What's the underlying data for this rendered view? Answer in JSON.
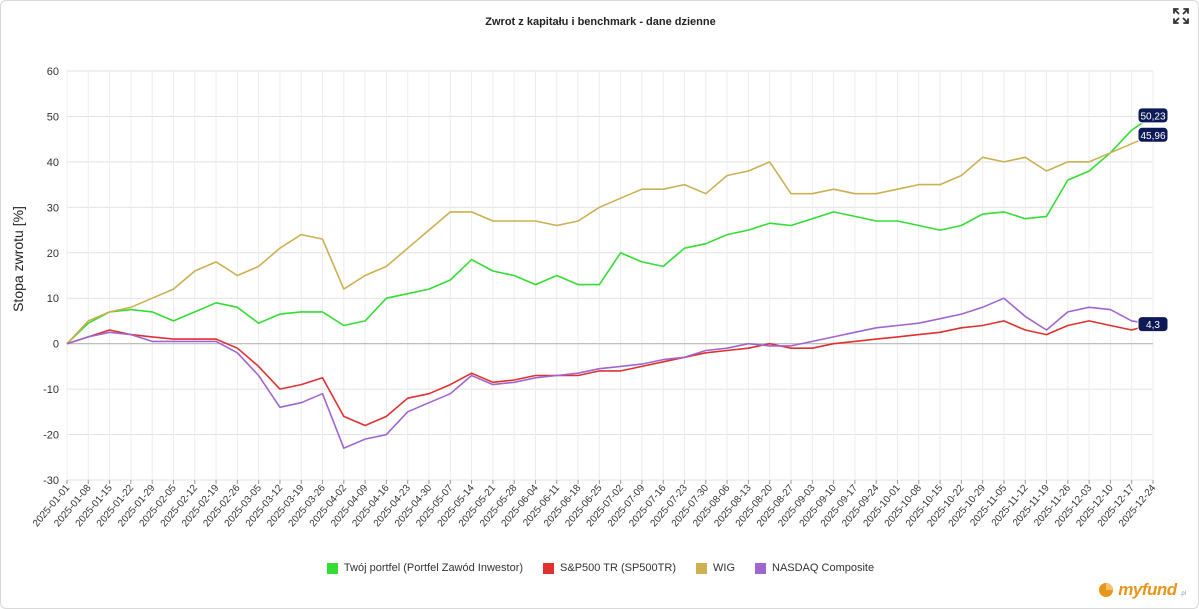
{
  "header": {
    "fullscreen_icon": "expand-arrows-icon"
  },
  "chart_data": {
    "type": "line",
    "title": "Zwrot z kapitału i benchmark - dane dzienne",
    "xlabel": "",
    "ylabel": "Stopa zwrotu [%]",
    "ylim": [
      -30,
      60
    ],
    "yticks": [
      60,
      50,
      40,
      30,
      20,
      10,
      0,
      -10,
      -20,
      -30
    ],
    "grid": true,
    "legend_position": "bottom",
    "x_tick_labels": [
      "2025-01-01",
      "2025-01-08",
      "2025-01-15",
      "2025-01-22",
      "2025-01-29",
      "2025-02-05",
      "2025-02-12",
      "2025-02-19",
      "2025-02-26",
      "2025-03-05",
      "2025-03-12",
      "2025-03-19",
      "2025-03-26",
      "2025-04-02",
      "2025-04-09",
      "2025-04-16",
      "2025-04-23",
      "2025-04-30",
      "2025-05-07",
      "2025-05-14",
      "2025-05-21",
      "2025-05-28",
      "2025-06-04",
      "2025-06-11",
      "2025-06-18",
      "2025-06-25",
      "2025-07-02",
      "2025-07-09",
      "2025-07-16",
      "2025-07-23",
      "2025-07-30",
      "2025-08-06",
      "2025-08-13",
      "2025-08-20",
      "2025-08-27",
      "2025-09-03",
      "2025-09-10",
      "2025-09-17",
      "2025-09-24",
      "2025-10-01",
      "2025-10-08",
      "2025-10-15",
      "2025-10-22",
      "2025-10-29",
      "2025-11-05",
      "2025-11-12",
      "2025-11-19",
      "2025-11-26",
      "2025-12-03",
      "2025-12-10",
      "2025-12-17",
      "2025-12-24"
    ],
    "series": [
      {
        "name": "Twój portfel (Portfel Zawód Inwestor)",
        "color": "#33dd33",
        "end_label": "50,23",
        "values": [
          0,
          4.5,
          7,
          7.5,
          7,
          5,
          7,
          9,
          8,
          4.5,
          6.5,
          7,
          7,
          4,
          5,
          10,
          11,
          12,
          14,
          18.5,
          16,
          15,
          13,
          15,
          13,
          13,
          20,
          18,
          17,
          21,
          22,
          24,
          25,
          26.5,
          26,
          27.5,
          29,
          28,
          27,
          27,
          26,
          25,
          26,
          28.5,
          29,
          27.5,
          28,
          36,
          38,
          42,
          47,
          50.23
        ]
      },
      {
        "name": "S&P500 TR (SP500TR)",
        "color": "#e03030",
        "end_label": "",
        "values": [
          0,
          1.5,
          3,
          2,
          1.5,
          1,
          1,
          1,
          -1,
          -5,
          -10,
          -9,
          -7.5,
          -16,
          -18,
          -16,
          -12,
          -11,
          -9,
          -6.5,
          -8.5,
          -8,
          -7,
          -7,
          -7,
          -6,
          -6,
          -5,
          -4,
          -3,
          -2,
          -1.5,
          -1,
          0,
          -1,
          -1,
          0,
          0.5,
          1,
          1.5,
          2,
          2.5,
          3.5,
          4,
          5,
          3,
          2,
          4,
          5,
          4,
          3,
          4.3
        ]
      },
      {
        "name": "WIG",
        "color": "#ccb052",
        "end_label": "45,96",
        "values": [
          0,
          5,
          7,
          8,
          10,
          12,
          16,
          18,
          15,
          17,
          21,
          24,
          23,
          12,
          15,
          17,
          21,
          25,
          29,
          29,
          27,
          27,
          27,
          26,
          27,
          30,
          32,
          34,
          34,
          35,
          33,
          37,
          38,
          40,
          33,
          33,
          34,
          33,
          33,
          34,
          35,
          35,
          37,
          41,
          40,
          41,
          38,
          40,
          40,
          42,
          44,
          45.96
        ]
      },
      {
        "name": "NASDAQ Composite",
        "color": "#a066d0",
        "end_label": "",
        "values": [
          0,
          1.5,
          2.5,
          2,
          0.5,
          0.5,
          0.5,
          0.5,
          -2,
          -7,
          -14,
          -13,
          -11,
          -23,
          -21,
          -20,
          -15,
          -13,
          -11,
          -7,
          -9,
          -8.5,
          -7.5,
          -7,
          -6.5,
          -5.5,
          -5,
          -4.5,
          -3.5,
          -3,
          -1.5,
          -1,
          0,
          -0.5,
          -0.5,
          0.5,
          1.5,
          2.5,
          3.5,
          4,
          4.5,
          5.5,
          6.5,
          8,
          10,
          6,
          3,
          7,
          8,
          7.5,
          5,
          4.3
        ]
      }
    ],
    "extra_end_label": "4,3",
    "extra_end_label_value": 4.3
  },
  "logo": {
    "text": "myfund",
    "suffix": ".pl"
  }
}
